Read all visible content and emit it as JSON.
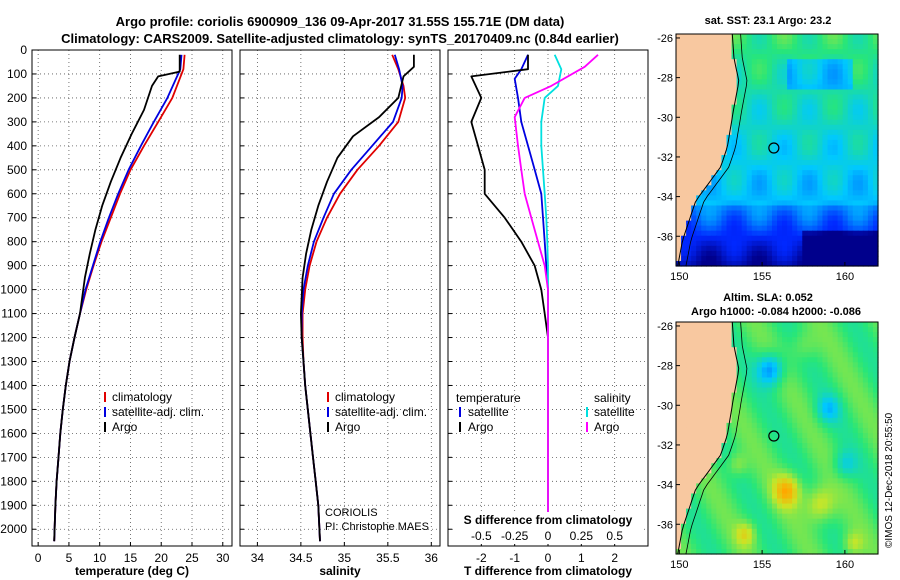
{
  "title": {
    "line1": "Argo profile: coriolis 6900909_136 09-Apr-2017 31.55S 155.71E (DM data)",
    "line2": "Climatology: CARS2009. Satellite-adjusted climatology: synTS_20170409.nc (0.84d earlier)"
  },
  "credit": {
    "line1": "CORIOLIS",
    "line2": "PI: Christophe MAES"
  },
  "watermark": "©IMOS 12-Dec-2018 20:55:50",
  "colors": {
    "climatology": "#e00000",
    "satellite": "#0000e0",
    "argo": "#000000",
    "s_satellite": "#00e0e0",
    "s_argo": "#ff00ff",
    "land": "#f8c8a0"
  },
  "depth_axis": {
    "ticks": [
      0,
      100,
      200,
      300,
      400,
      500,
      600,
      700,
      800,
      900,
      1000,
      1100,
      1200,
      1300,
      1400,
      1500,
      1600,
      1700,
      1800,
      1900,
      2000
    ],
    "ylim": [
      0,
      2070
    ]
  },
  "legend_labels": {
    "climatology": "climatology",
    "satellite_adj": "satellite-adj. clim.",
    "argo": "Argo",
    "temperature": "temperature",
    "salinity": "salinity",
    "satellite": "satellite",
    "argo_short": "Argo"
  },
  "chart_data": [
    {
      "type": "line",
      "id": "temperature",
      "xlabel": "temperature (deg C)",
      "ylabel": "depth",
      "xlim": [
        -1,
        31.5
      ],
      "xticks": [
        0,
        5,
        10,
        15,
        20,
        25,
        30
      ],
      "series": [
        {
          "name": "climatology",
          "color": "#e00000",
          "x": [
            23.8,
            23.6,
            23.0,
            21.8,
            19.5,
            17.2,
            15.0,
            13.3,
            11.8,
            10.3,
            9.0,
            7.8,
            6.8,
            5.9,
            5.1,
            4.5,
            4.0,
            3.6,
            3.3,
            3.0,
            2.8,
            2.6
          ],
          "y": [
            20,
            80,
            120,
            200,
            300,
            400,
            500,
            600,
            700,
            800,
            900,
            1000,
            1100,
            1200,
            1300,
            1400,
            1500,
            1600,
            1700,
            1800,
            1900,
            2050
          ]
        },
        {
          "name": "satellite-adj. clim.",
          "color": "#0000e0",
          "x": [
            23.3,
            23.1,
            22.4,
            21.0,
            18.8,
            16.7,
            14.7,
            13.0,
            11.5,
            10.1,
            8.9,
            7.7,
            6.8,
            5.9,
            5.1,
            4.5,
            4.0,
            3.6,
            3.3,
            3.0,
            2.8,
            2.6
          ],
          "y": [
            20,
            80,
            120,
            200,
            300,
            400,
            500,
            600,
            700,
            800,
            900,
            1000,
            1100,
            1200,
            1300,
            1400,
            1500,
            1600,
            1700,
            1800,
            1900,
            2050
          ]
        },
        {
          "name": "Argo",
          "color": "#000000",
          "x": [
            23.0,
            23.0,
            19.5,
            18.5,
            17.2,
            15.2,
            13.4,
            11.8,
            10.4,
            9.3,
            8.4,
            7.6,
            6.8,
            5.9,
            5.1,
            4.5,
            4.0,
            3.6,
            3.3,
            3.0,
            2.8,
            2.6
          ],
          "y": [
            20,
            90,
            110,
            150,
            250,
            350,
            450,
            550,
            650,
            750,
            850,
            950,
            1100,
            1200,
            1300,
            1400,
            1500,
            1600,
            1700,
            1800,
            1900,
            2050
          ]
        }
      ]
    },
    {
      "type": "line",
      "id": "salinity",
      "xlabel": "salinity",
      "ylabel": "depth",
      "xlim": [
        33.8,
        36.1
      ],
      "xticks": [
        34,
        34.5,
        35,
        35.5,
        36
      ],
      "series": [
        {
          "name": "climatology",
          "color": "#e00000",
          "x": [
            35.55,
            35.62,
            35.68,
            35.7,
            35.62,
            35.4,
            35.15,
            34.95,
            34.8,
            34.68,
            34.6,
            34.55,
            34.52,
            34.52,
            34.53,
            34.55,
            34.58,
            34.61,
            34.64,
            34.67,
            34.7,
            34.72
          ],
          "y": [
            20,
            80,
            150,
            200,
            300,
            400,
            500,
            600,
            700,
            800,
            900,
            1000,
            1100,
            1200,
            1300,
            1400,
            1500,
            1600,
            1700,
            1800,
            1900,
            2050
          ]
        },
        {
          "name": "satellite-adj. clim.",
          "color": "#0000e0",
          "x": [
            35.58,
            35.63,
            35.67,
            35.66,
            35.56,
            35.32,
            35.08,
            34.88,
            34.76,
            34.65,
            34.58,
            34.53,
            34.51,
            34.51,
            34.53,
            34.55,
            34.58,
            34.61,
            34.64,
            34.67,
            34.7,
            34.72
          ],
          "y": [
            20,
            80,
            150,
            200,
            300,
            400,
            500,
            600,
            700,
            800,
            900,
            1000,
            1100,
            1200,
            1300,
            1400,
            1500,
            1600,
            1700,
            1800,
            1900,
            2050
          ]
        },
        {
          "name": "Argo",
          "color": "#000000",
          "x": [
            35.8,
            35.8,
            35.68,
            35.62,
            35.4,
            35.1,
            34.92,
            34.8,
            34.7,
            34.62,
            34.56,
            34.52,
            34.5,
            34.51,
            34.53,
            34.55,
            34.58,
            34.61,
            34.64,
            34.67,
            34.7,
            34.72
          ],
          "y": [
            20,
            70,
            110,
            200,
            280,
            360,
            450,
            550,
            650,
            750,
            850,
            950,
            1100,
            1200,
            1300,
            1400,
            1500,
            1600,
            1700,
            1800,
            1900,
            2050
          ]
        }
      ]
    },
    {
      "type": "line",
      "id": "differences",
      "xlabel": "T difference from climatology",
      "top_label": "S difference from climatology",
      "xlim": [
        -3.0,
        3.0
      ],
      "xticks": [
        -2,
        -1,
        0,
        1,
        2
      ],
      "top_ticks": {
        "labels": [
          "-0.5",
          "-0.25",
          "0",
          "0.25",
          "0.5"
        ],
        "positions": [
          -2,
          -1,
          0,
          1,
          2
        ]
      },
      "legend": {
        "temperature": "temperature",
        "salinity": "salinity"
      },
      "series": [
        {
          "name": "temperature satellite",
          "color": "#0000e0",
          "x": [
            -0.6,
            -0.8,
            -1.0,
            -0.9,
            -0.8,
            -0.6,
            -0.4,
            -0.2,
            -0.15,
            -0.1,
            -0.05,
            0.0,
            0.0,
            0.0,
            0.0,
            0.0,
            0.0,
            0.0,
            0.0,
            0.0,
            0.0,
            0.0
          ],
          "y": [
            20,
            80,
            120,
            200,
            300,
            400,
            500,
            600,
            700,
            800,
            900,
            1000,
            1100,
            1200,
            1300,
            1400,
            1500,
            1600,
            1700,
            1800,
            1900,
            2050
          ]
        },
        {
          "name": "temperature Argo",
          "color": "#000000",
          "x": [
            -0.6,
            -0.6,
            -2.3,
            -2.0,
            -2.3,
            -2.1,
            -1.9,
            -1.9,
            -1.3,
            -0.8,
            -0.4,
            -0.2,
            -0.1,
            0.0,
            0.0,
            0.0,
            0.0,
            0.0,
            0.0,
            0.0,
            0.0,
            0.0
          ],
          "y": [
            20,
            80,
            110,
            200,
            300,
            400,
            500,
            600,
            700,
            800,
            900,
            1000,
            1100,
            1200,
            1300,
            1400,
            1500,
            1600,
            1700,
            1800,
            1900,
            2050
          ]
        },
        {
          "name": "salinity satellite",
          "color": "#00e0e0",
          "x": [
            0.2,
            0.4,
            0.3,
            -0.1,
            -0.2,
            -0.2,
            -0.15,
            -0.1,
            -0.05,
            -0.02,
            0.0,
            0.0,
            0.0,
            0.0,
            0.0,
            0.0,
            0.0,
            0.0,
            0.0,
            0.0,
            0.0,
            0.0
          ],
          "y": [
            20,
            80,
            150,
            200,
            300,
            400,
            500,
            600,
            700,
            800,
            900,
            1000,
            1100,
            1200,
            1300,
            1400,
            1500,
            1600,
            1700,
            1800,
            1900,
            2050
          ]
        },
        {
          "name": "salinity Argo",
          "color": "#ff00ff",
          "x": [
            1.5,
            1.1,
            0.1,
            -0.7,
            -1.0,
            -0.9,
            -0.8,
            -0.7,
            -0.5,
            -0.3,
            -0.1,
            0.0,
            0.0,
            0.0,
            0.0,
            0.0,
            0.0,
            0.0,
            0.0,
            0.0,
            0.0,
            0.0
          ],
          "y": [
            20,
            70,
            150,
            200,
            280,
            400,
            500,
            600,
            700,
            800,
            900,
            1000,
            1100,
            1200,
            1300,
            1400,
            1500,
            1600,
            1700,
            1800,
            1900,
            2050
          ]
        }
      ]
    }
  ],
  "maps": [
    {
      "id": "sst",
      "title": "sat. SST: 23.1 Argo: 23.2",
      "xlim": [
        149.8,
        162
      ],
      "ylim": [
        -37.5,
        -25.8
      ],
      "xticks": [
        150,
        155,
        160
      ],
      "yticks": [
        -26,
        -28,
        -30,
        -32,
        -34,
        -36
      ],
      "argo_pos": [
        155.71,
        -31.55
      ],
      "colormap": "sst"
    },
    {
      "id": "sla",
      "title": "Altim. SLA: 0.052",
      "subtitle": "Argo h1000: -0.084 h2000: -0.086",
      "xlim": [
        149.8,
        162
      ],
      "ylim": [
        -37.5,
        -25.8
      ],
      "xticks": [
        150,
        155,
        160
      ],
      "yticks": [
        -26,
        -28,
        -30,
        -32,
        -34,
        -36
      ],
      "argo_pos": [
        155.71,
        -31.55
      ],
      "colormap": "sla"
    }
  ]
}
